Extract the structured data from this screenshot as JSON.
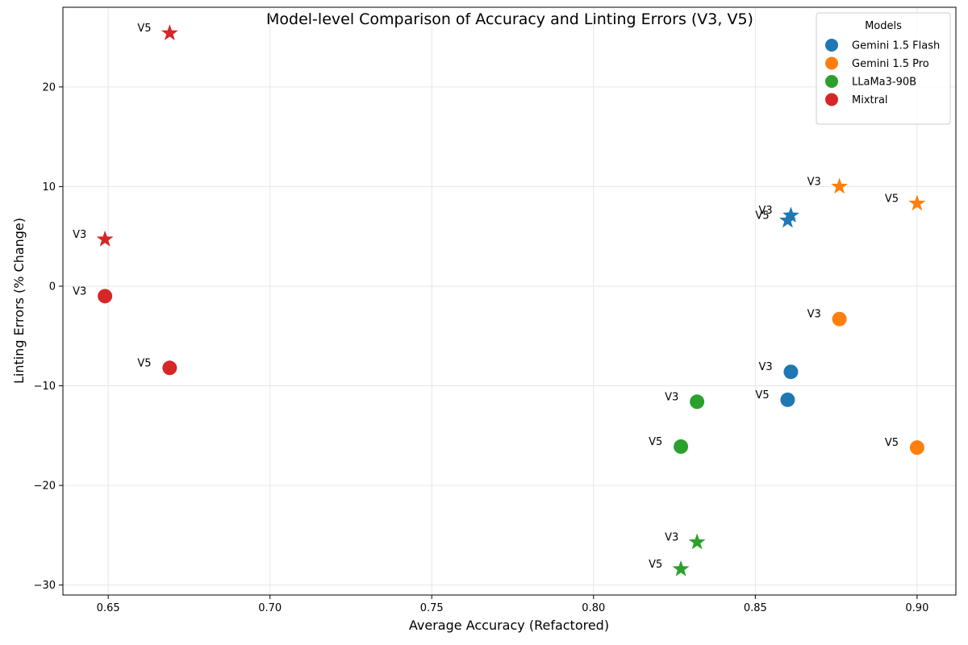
{
  "chart_data": {
    "type": "scatter",
    "title": "Model-level Comparison of Accuracy and Linting Errors (V3, V5)",
    "xlabel": "Average Accuracy (Refactored)",
    "ylabel": "Linting Errors (% Change)",
    "xlim": [
      0.636,
      0.912
    ],
    "ylim": [
      -31,
      28
    ],
    "x_ticks": [
      0.65,
      0.7,
      0.75,
      0.8,
      0.85,
      0.9
    ],
    "x_tick_labels": [
      "0.65",
      "0.70",
      "0.75",
      "0.80",
      "0.85",
      "0.90"
    ],
    "y_ticks": [
      -30,
      -20,
      -10,
      0,
      10,
      20
    ],
    "y_tick_labels": [
      "−30",
      "−20",
      "−10",
      "0",
      "10",
      "20"
    ],
    "grid": true,
    "legend": {
      "title": "Models",
      "placement": "top-right",
      "entries": [
        "Gemini 1.5 Flash",
        "Gemini 1.5 Pro",
        "LLaMa3-90B",
        "Mixtral"
      ]
    },
    "marker_shapes": {
      "circle": "circle",
      "star": "star"
    },
    "series": [
      {
        "name": "Gemini 1.5 Flash",
        "color": "#1f77b4",
        "points": [
          {
            "label": "V3",
            "x": 0.861,
            "y": -8.6,
            "marker": "circle"
          },
          {
            "label": "V5",
            "x": 0.86,
            "y": -11.4,
            "marker": "circle"
          },
          {
            "label": "V3",
            "x": 0.861,
            "y": 7.1,
            "marker": "star"
          },
          {
            "label": "V5",
            "x": 0.86,
            "y": 6.6,
            "marker": "star"
          }
        ]
      },
      {
        "name": "Gemini 1.5 Pro",
        "color": "#ff7f0e",
        "points": [
          {
            "label": "V3",
            "x": 0.876,
            "y": -3.3,
            "marker": "circle"
          },
          {
            "label": "V5",
            "x": 0.9,
            "y": -16.2,
            "marker": "circle"
          },
          {
            "label": "V3",
            "x": 0.876,
            "y": 10.0,
            "marker": "star"
          },
          {
            "label": "V5",
            "x": 0.9,
            "y": 8.3,
            "marker": "star"
          }
        ]
      },
      {
        "name": "LLaMa3-90B",
        "color": "#2ca02c",
        "points": [
          {
            "label": "V3",
            "x": 0.832,
            "y": -11.6,
            "marker": "circle"
          },
          {
            "label": "V5",
            "x": 0.827,
            "y": -16.1,
            "marker": "circle"
          },
          {
            "label": "V3",
            "x": 0.832,
            "y": -25.7,
            "marker": "star"
          },
          {
            "label": "V5",
            "x": 0.827,
            "y": -28.4,
            "marker": "star"
          }
        ]
      },
      {
        "name": "Mixtral",
        "color": "#d62728",
        "points": [
          {
            "label": "V3",
            "x": 0.649,
            "y": -1.0,
            "marker": "circle"
          },
          {
            "label": "V5",
            "x": 0.669,
            "y": -8.2,
            "marker": "circle"
          },
          {
            "label": "V3",
            "x": 0.649,
            "y": 4.7,
            "marker": "star"
          },
          {
            "label": "V5",
            "x": 0.669,
            "y": 25.4,
            "marker": "star"
          }
        ]
      }
    ]
  }
}
